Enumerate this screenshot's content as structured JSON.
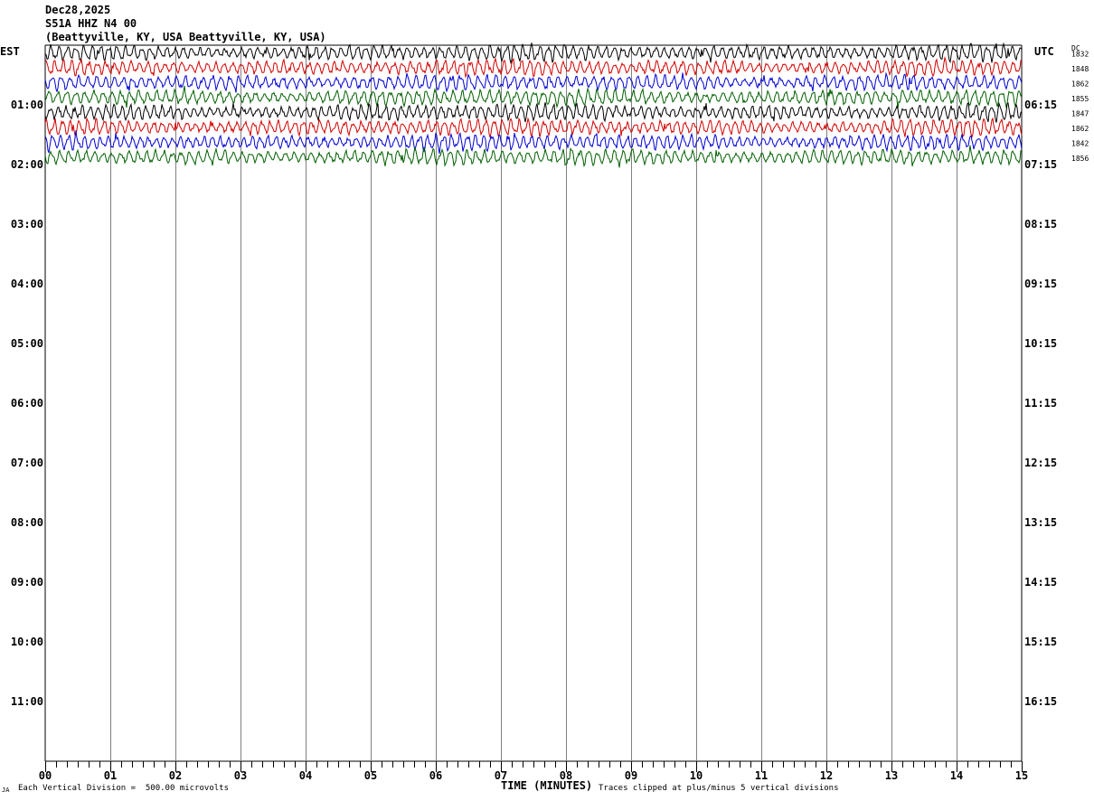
{
  "header": {
    "date": "Dec28,2025",
    "station": "S51A HHZ N4 00",
    "location": "(Beattyville, KY, USA Beattyville, KY, USA)"
  },
  "left_tz": "EST",
  "right_tz": "UTC",
  "dc_label": "DC",
  "footer": {
    "scale": "Each Vertical Division =  500.00 microvolts",
    "xlabel": "TIME (MINUTES)",
    "clip_note": "Traces clipped at plus/minus 5 vertical divisions",
    "corner_mark": "JA"
  },
  "colors": {
    "trace_cycle": [
      "#000000",
      "#d40000",
      "#0000d4",
      "#006000"
    ],
    "grid": "#808080",
    "background": "#ffffff"
  },
  "chart_data": {
    "type": "line",
    "title": "S51A HHZ N4 00",
    "xlabel": "TIME (MINUTES)",
    "xlim": [
      0,
      15
    ],
    "x_ticks": [
      "00",
      "01",
      "02",
      "03",
      "04",
      "05",
      "06",
      "07",
      "08",
      "09",
      "10",
      "11",
      "12",
      "13",
      "14",
      "15"
    ],
    "left_hour_labels": [
      "01:00",
      "02:00",
      "03:00",
      "04:00",
      "05:00",
      "06:00",
      "07:00",
      "08:00",
      "09:00",
      "10:00",
      "11:00"
    ],
    "right_hour_labels": [
      "06:15",
      "07:15",
      "08:15",
      "09:15",
      "10:15",
      "11:15",
      "12:15",
      "13:15",
      "14:15",
      "15:15",
      "16:15"
    ],
    "rows_total": 48,
    "rows_per_hour": 4,
    "grid": true,
    "traces": [
      {
        "row": 0,
        "dc": "1832",
        "color": "#000000"
      },
      {
        "row": 1,
        "dc": "1848",
        "color": "#d40000"
      },
      {
        "row": 2,
        "dc": "1862",
        "color": "#0000d4"
      },
      {
        "row": 3,
        "dc": "1855",
        "color": "#006000"
      },
      {
        "row": 4,
        "dc": "1847",
        "color": "#000000"
      },
      {
        "row": 5,
        "dc": "1862",
        "color": "#d40000"
      },
      {
        "row": 6,
        "dc": "1842",
        "color": "#0000d4"
      },
      {
        "row": 7,
        "dc": "1856",
        "color": "#006000"
      }
    ]
  }
}
